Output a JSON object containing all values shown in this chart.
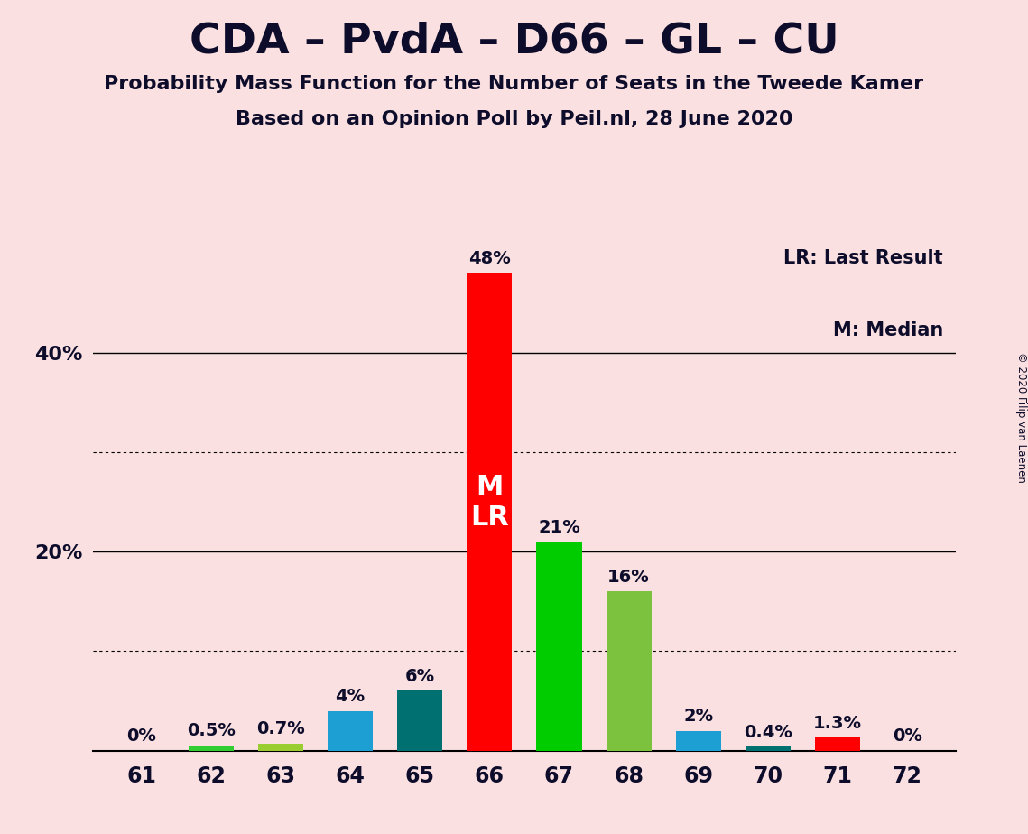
{
  "title": "CDA – PvdA – D66 – GL – CU",
  "subtitle1": "Probability Mass Function for the Number of Seats in the Tweede Kamer",
  "subtitle2": "Based on an Opinion Poll by Peil.nl, 28 June 2020",
  "copyright": "© 2020 Filip van Laenen",
  "categories": [
    61,
    62,
    63,
    64,
    65,
    66,
    67,
    68,
    69,
    70,
    71,
    72
  ],
  "values": [
    0.0,
    0.5,
    0.7,
    4.0,
    6.0,
    48.0,
    21.0,
    16.0,
    2.0,
    0.4,
    1.3,
    0.0
  ],
  "labels": [
    "0%",
    "0.5%",
    "0.7%",
    "4%",
    "6%",
    "48%",
    "21%",
    "16%",
    "2%",
    "0.4%",
    "1.3%",
    "0%"
  ],
  "bar_colors": [
    "#90EE90",
    "#32CD32",
    "#9ACD32",
    "#1E9FD4",
    "#007070",
    "#FF0000",
    "#00CC00",
    "#7DC23E",
    "#1E9FD4",
    "#007070",
    "#FF0000",
    "#90EE90"
  ],
  "background_color": "#FAE0E0",
  "ylim": [
    0,
    52
  ],
  "solid_gridlines": [
    20,
    40
  ],
  "dotted_gridlines": [
    10,
    30
  ],
  "legend_lr": "LR: Last Result",
  "legend_m": "M: Median"
}
